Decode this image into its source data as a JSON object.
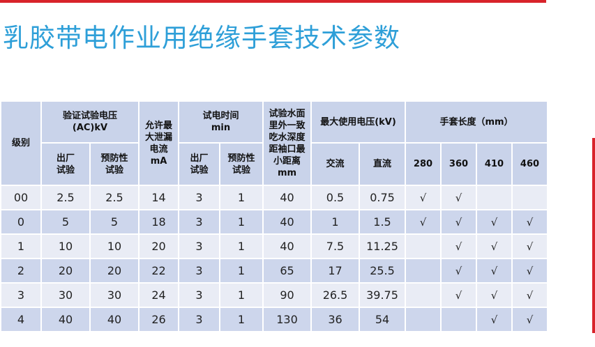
{
  "title": "乳胶带电作业用绝缘手套技术参数",
  "table": {
    "headers": {
      "level": "级别",
      "test_voltage": "验证试验电压\n(AC)kV",
      "factory_test": "出厂\n试验",
      "preventive_test": "预防性\n试验",
      "leakage": "允许最\n大泄漏\n电流\nmA",
      "test_time": "试电时间\nmin",
      "test_time_factory": "出厂\n试验",
      "test_time_preventive": "预防性\n试验",
      "water_depth": "试验水面\n里外一致\n吃水深度\n距袖口最\n小距离\nmm",
      "max_voltage": "最大使用电压(kV)",
      "ac": "交流",
      "dc": "直流",
      "length": "手套长度（mm）",
      "lengths": [
        "280",
        "360",
        "410",
        "460"
      ]
    },
    "rows": [
      {
        "cells": [
          "00",
          "2.5",
          "2.5",
          "14",
          "3",
          "1",
          "40",
          "0.5",
          "0.75",
          "√",
          "√",
          "",
          ""
        ]
      },
      {
        "cells": [
          "0",
          "5",
          "5",
          "18",
          "3",
          "1",
          "40",
          "1",
          "1.5",
          "√",
          "√",
          "√",
          "√"
        ]
      },
      {
        "cells": [
          "1",
          "10",
          "10",
          "20",
          "3",
          "1",
          "40",
          "7.5",
          "11.25",
          "",
          "√",
          "√",
          "√"
        ]
      },
      {
        "cells": [
          "2",
          "20",
          "20",
          "22",
          "3",
          "1",
          "65",
          "17",
          "25.5",
          "",
          "√",
          "√",
          "√"
        ]
      },
      {
        "cells": [
          "3",
          "30",
          "30",
          "24",
          "3",
          "1",
          "90",
          "26.5",
          "39.75",
          "",
          "√",
          "√",
          "√"
        ]
      },
      {
        "cells": [
          "4",
          "40",
          "40",
          "26",
          "3",
          "1",
          "130",
          "36",
          "54",
          "",
          "",
          "√",
          "√"
        ]
      }
    ]
  }
}
